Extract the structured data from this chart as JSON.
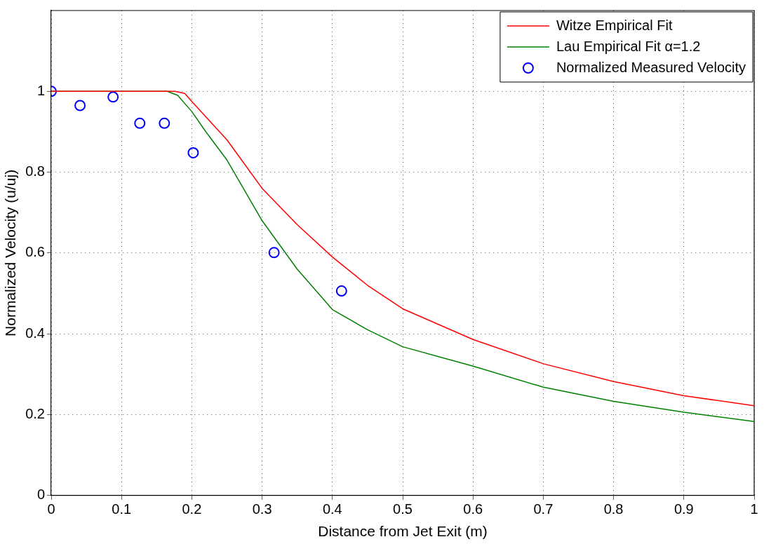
{
  "chart_data": {
    "type": "line",
    "xlabel": "Distance from Jet Exit (m)",
    "ylabel": "Normalized Velocity (u/uj)",
    "xlim": [
      0,
      1
    ],
    "xticks": [
      0,
      0.1,
      0.2,
      0.3,
      0.4,
      0.5,
      0.6,
      0.7,
      0.8,
      0.9,
      1
    ],
    "ylim": [
      0,
      1.2
    ],
    "yticks": [
      0,
      0.2,
      0.4,
      0.6,
      0.8,
      1
    ],
    "grid": true,
    "legend": "top right",
    "line_style": "solid",
    "series": [
      {
        "name": "Witze Empirical Fit",
        "color": "#ff0000",
        "marker": "none",
        "x": [
          0,
          0.1,
          0.176,
          0.19,
          0.2,
          0.25,
          0.3,
          0.35,
          0.4,
          0.45,
          0.5,
          0.6,
          0.7,
          0.8,
          0.9,
          1
        ],
        "values": [
          1,
          1,
          1,
          0.995,
          0.975,
          0.88,
          0.76,
          0.67,
          0.59,
          0.52,
          0.462,
          0.386,
          0.326,
          0.282,
          0.247,
          0.222
        ]
      },
      {
        "name": "Lau Empirical Fit α=1.2",
        "color": "#008000",
        "marker": "none",
        "x": [
          0,
          0.1,
          0.165,
          0.18,
          0.2,
          0.22,
          0.25,
          0.3,
          0.35,
          0.4,
          0.45,
          0.5,
          0.6,
          0.7,
          0.8,
          0.9,
          1
        ],
        "values": [
          1,
          1,
          1,
          0.99,
          0.95,
          0.9,
          0.83,
          0.68,
          0.56,
          0.46,
          0.41,
          0.368,
          0.32,
          0.268,
          0.233,
          0.206,
          0.183
        ]
      },
      {
        "name": "Normalized Measured Velocity",
        "color": "#0000ff",
        "type": "scatter",
        "marker": "circle",
        "x": [
          0,
          0.041,
          0.088,
          0.126,
          0.161,
          0.202,
          0.317,
          0.413
        ],
        "values": [
          1,
          0.965,
          0.986,
          0.921,
          0.921,
          0.848,
          0.601,
          0.506
        ]
      }
    ]
  }
}
